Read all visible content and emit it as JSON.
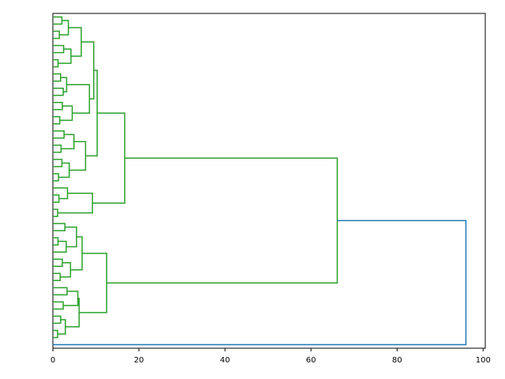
{
  "chart_data": {
    "type": "dendrogram",
    "orientation": "left",
    "xlim": [
      0,
      100.5
    ],
    "xticks": [
      0,
      20,
      40,
      60,
      80,
      100
    ],
    "root_color": "#1f77b4",
    "cluster_color": "#2ca02c",
    "tree": [
      96,
      [
        66.1,
        [
          16.7,
          [
            10.3,
            [
              9.5,
              [
                6.6,
                [
                  3.6,
                  [
                    2.1,
                    [],
                    []
                  ],
                  [
                    1.5,
                    [],
                    []
                  ]
                ],
                [
                  4.2,
                  [
                    2.5,
                    [],
                    []
                  ],
                  [
                    1.2,
                    [],
                    []
                  ]
                ]
              ],
              [
                8.5,
                [
                  3.2,
                  [
                    1.8,
                    [],
                    []
                  ],
                  [
                    2.4,
                    [],
                    []
                  ]
                ],
                [
                  4.5,
                  [
                    2.2,
                    [],
                    []
                  ],
                  [
                    1.6,
                    [],
                    []
                  ]
                ]
              ]
            ],
            [
              7.6,
              [
                4.9,
                [
                  2.6,
                  [],
                  []
                ],
                [
                  1.9,
                  [],
                  []
                ]
              ],
              [
                3.8,
                [
                  2.1,
                  [],
                  []
                ],
                [
                  1.3,
                  [],
                  []
                ]
              ]
            ]
          ],
          [
            9.2,
            [
              3.4,
              [],
              [
                1.4,
                [],
                []
              ]
            ],
            [
              1.1,
              [],
              []
            ]
          ]
        ],
        [
          12.5,
          [
            6.8,
            [
              5.5,
              [
                2.8,
                [],
                []
              ],
              [
                3.1,
                [
                  1.2,
                  [],
                  []
                ],
                []
              ]
            ],
            [
              4.1,
              [
                2.2,
                [],
                []
              ],
              [
                1.7,
                [],
                []
              ]
            ]
          ],
          [
            6.1,
            [
              5.8,
              [
                3.3,
                [],
                []
              ],
              [
                2.4,
                [],
                []
              ]
            ],
            [
              2.9,
              [
                1.8,
                [],
                []
              ],
              [
                1.1,
                [],
                []
              ]
            ]
          ]
        ]
      ],
      []
    ]
  }
}
